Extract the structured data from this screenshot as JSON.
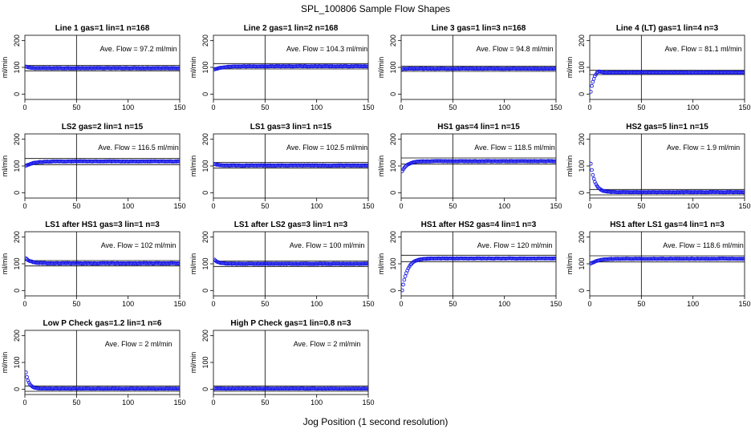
{
  "figure": {
    "title": "SPL_100806  Sample Flow Shapes",
    "xlabel": "Jog Position (1 second resolution)"
  },
  "chart_data": [
    {
      "type": "scatter",
      "title": "Line 1 gas=1 lin=1 n=168",
      "ylabel": "ml/min",
      "annotation": "Ave. Flow =  97.2  ml/min",
      "xlim": [
        0,
        150
      ],
      "ylim": [
        -20,
        220
      ],
      "x_ticks": [
        0,
        50,
        100,
        150
      ],
      "y_ticks": [
        0,
        100,
        200
      ],
      "vline": 50,
      "hlines": [
        107,
        87
      ],
      "shape": {
        "start": 103,
        "settle": 97,
        "tau": 3,
        "noise": 0.8
      }
    },
    {
      "type": "scatter",
      "title": "Line 2 gas=1 lin=2 n=168",
      "ylabel": "ml/min",
      "annotation": "Ave. Flow =  104.3  ml/min",
      "xlim": [
        0,
        150
      ],
      "ylim": [
        -20,
        220
      ],
      "x_ticks": [
        0,
        50,
        100,
        150
      ],
      "y_ticks": [
        0,
        100,
        200
      ],
      "vline": 50,
      "hlines": [
        114,
        94
      ],
      "shape": {
        "start": 92,
        "settle": 104,
        "tau": 8,
        "noise": 0.8
      }
    },
    {
      "type": "scatter",
      "title": "Line 3 gas=1 lin=3 n=168",
      "ylabel": "ml/min",
      "annotation": "Ave. Flow =  94.8  ml/min",
      "xlim": [
        0,
        150
      ],
      "ylim": [
        -20,
        220
      ],
      "x_ticks": [
        0,
        50,
        100,
        150
      ],
      "y_ticks": [
        0,
        100,
        200
      ],
      "vline": 50,
      "hlines": [
        104,
        85
      ],
      "shape": {
        "start": 93,
        "settle": 95,
        "tau": 3,
        "noise": 0.8
      }
    },
    {
      "type": "scatter",
      "title": "Line 4 (LT) gas=1 lin=4 n=3",
      "ylabel": "ml/min",
      "annotation": "Ave. Flow =  81.1  ml/min",
      "xlim": [
        0,
        150
      ],
      "ylim": [
        -20,
        220
      ],
      "x_ticks": [
        0,
        50,
        100,
        150
      ],
      "y_ticks": [
        0,
        100,
        200
      ],
      "vline": 50,
      "hlines": [
        89,
        73
      ],
      "shape": {
        "start": 8,
        "settle": 81,
        "tau": 3,
        "noise": 1.0,
        "overshoot": 9
      }
    },
    {
      "type": "scatter",
      "title": "LS2 gas=2 lin=1 n=15",
      "ylabel": "ml/min",
      "annotation": "Ave. Flow =  116.5  ml/min",
      "xlim": [
        0,
        150
      ],
      "ylim": [
        -20,
        220
      ],
      "x_ticks": [
        0,
        50,
        100,
        150
      ],
      "y_ticks": [
        0,
        100,
        200
      ],
      "vline": 50,
      "hlines": [
        128,
        105
      ],
      "shape": {
        "start": 100,
        "settle": 117,
        "tau": 7,
        "noise": 0.8
      }
    },
    {
      "type": "scatter",
      "title": "LS1 gas=3 lin=1 n=15",
      "ylabel": "ml/min",
      "annotation": "Ave. Flow =  102.5  ml/min",
      "xlim": [
        0,
        150
      ],
      "ylim": [
        -20,
        220
      ],
      "x_ticks": [
        0,
        50,
        100,
        150
      ],
      "y_ticks": [
        0,
        100,
        200
      ],
      "vline": 50,
      "hlines": [
        113,
        92
      ],
      "shape": {
        "start": 107,
        "settle": 102,
        "tau": 4,
        "noise": 0.8
      }
    },
    {
      "type": "scatter",
      "title": "HS1 gas=4 lin=1 n=15",
      "ylabel": "ml/min",
      "annotation": "Ave. Flow =  118.5  ml/min",
      "xlim": [
        0,
        150
      ],
      "ylim": [
        -20,
        220
      ],
      "x_ticks": [
        0,
        50,
        100,
        150
      ],
      "y_ticks": [
        0,
        100,
        200
      ],
      "vline": 50,
      "hlines": [
        130,
        107
      ],
      "shape": {
        "start": 80,
        "settle": 118,
        "tau": 5,
        "noise": 0.8
      }
    },
    {
      "type": "scatter",
      "title": "HS2 gas=5 lin=1 n=15",
      "ylabel": "ml/min",
      "annotation": "Ave. Flow =  1.9  ml/min",
      "xlim": [
        0,
        150
      ],
      "ylim": [
        -20,
        220
      ],
      "x_ticks": [
        0,
        50,
        100,
        150
      ],
      "y_ticks": [
        0,
        100,
        200
      ],
      "vline": 50,
      "hlines": [
        12,
        -8
      ],
      "shape": {
        "start": 108,
        "settle": 2,
        "tau": 4,
        "noise": 0.8
      }
    },
    {
      "type": "scatter",
      "title": "LS1 after HS1 gas=3 lin=1 n=3",
      "ylabel": "ml/min",
      "annotation": "Ave. Flow =  102  ml/min",
      "xlim": [
        0,
        150
      ],
      "ylim": [
        -20,
        220
      ],
      "x_ticks": [
        0,
        50,
        100,
        150
      ],
      "y_ticks": [
        0,
        100,
        200
      ],
      "vline": 50,
      "hlines": [
        112,
        92
      ],
      "shape": {
        "start": 120,
        "settle": 102,
        "tau": 5,
        "noise": 1.0
      }
    },
    {
      "type": "scatter",
      "title": "LS1 after LS2 gas=3 lin=1 n=3",
      "ylabel": "ml/min",
      "annotation": "Ave. Flow =  100  ml/min",
      "xlim": [
        0,
        150
      ],
      "ylim": [
        -20,
        220
      ],
      "x_ticks": [
        0,
        50,
        100,
        150
      ],
      "y_ticks": [
        0,
        100,
        200
      ],
      "vline": 50,
      "hlines": [
        110,
        90
      ],
      "shape": {
        "start": 115,
        "settle": 100,
        "tau": 4,
        "noise": 0.8
      }
    },
    {
      "type": "scatter",
      "title": "HS1 after HS2 gas=4 lin=1 n=3",
      "ylabel": "ml/min",
      "annotation": "Ave. Flow =  120  ml/min",
      "xlim": [
        0,
        150
      ],
      "ylim": [
        -20,
        220
      ],
      "x_ticks": [
        0,
        50,
        100,
        150
      ],
      "y_ticks": [
        0,
        100,
        200
      ],
      "vline": 50,
      "hlines": [
        132,
        108
      ],
      "shape": {
        "start": 0,
        "settle": 120,
        "tau": 5,
        "noise": 0.8
      }
    },
    {
      "type": "scatter",
      "title": "HS1 after LS1 gas=4 lin=1 n=3",
      "ylabel": "ml/min",
      "annotation": "Ave. Flow =  118.6  ml/min",
      "xlim": [
        0,
        150
      ],
      "ylim": [
        -20,
        220
      ],
      "x_ticks": [
        0,
        50,
        100,
        150
      ],
      "y_ticks": [
        0,
        100,
        200
      ],
      "vline": 50,
      "hlines": [
        130,
        107
      ],
      "shape": {
        "start": 100,
        "settle": 119,
        "tau": 7,
        "noise": 0.8
      }
    },
    {
      "type": "scatter",
      "title": "Low P Check gas=1.2 lin=1 n=6",
      "ylabel": "ml/min",
      "annotation": "Ave. Flow =  2  ml/min",
      "xlim": [
        0,
        150
      ],
      "ylim": [
        -20,
        220
      ],
      "x_ticks": [
        0,
        50,
        100,
        150
      ],
      "y_ticks": [
        0,
        100,
        200
      ],
      "vline": 50,
      "hlines": [
        12,
        -8
      ],
      "shape": {
        "start": 62,
        "settle": 2,
        "tau": 3,
        "noise": 0.6
      }
    },
    {
      "type": "scatter",
      "title": "High P Check gas=1 lin=0.8 n=3",
      "ylabel": "ml/min",
      "annotation": "Ave. Flow =  2  ml/min",
      "xlim": [
        0,
        150
      ],
      "ylim": [
        -20,
        220
      ],
      "x_ticks": [
        0,
        50,
        100,
        150
      ],
      "y_ticks": [
        0,
        100,
        200
      ],
      "vline": 50,
      "hlines": [
        12,
        -8
      ],
      "shape": {
        "start": 2,
        "settle": 2,
        "tau": 3,
        "noise": 0.6
      }
    }
  ],
  "colors": {
    "points": "#1a1ae6",
    "lines": "#000000",
    "background": "#ffffff"
  }
}
